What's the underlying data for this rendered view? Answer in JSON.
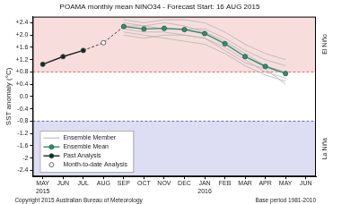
{
  "chart_data": {
    "type": "line",
    "title": "POAMA monthly mean NINO34 - Forecast Start: 16 AUG 2015",
    "y_label": "SST anomaly (°C)",
    "categories": [
      "MAY 2015",
      "JUN",
      "JUL",
      "AUG",
      "SEP",
      "OCT",
      "NOV",
      "DEC",
      "JAN 2016",
      "FEB",
      "MAR",
      "APR",
      "MAY",
      "JUN"
    ],
    "ylim": [
      -2.6,
      2.6
    ],
    "yticks": [
      -2.4,
      -2.0,
      -1.6,
      -1.2,
      -0.8,
      -0.4,
      {
        "value": 0,
        "label": "0.0"
      },
      {
        "value": 0.4,
        "label": "+0.4"
      },
      {
        "value": 0.8,
        "label": "+0.8"
      },
      {
        "value": 1.2,
        "label": "+1.2"
      },
      {
        "value": 1.6,
        "label": "+1.6"
      },
      {
        "value": 2.0,
        "label": "+2.0"
      },
      {
        "value": 2.4,
        "label": "+2.4"
      }
    ],
    "grid": false,
    "legend": "lower left",
    "thresholds": [
      {
        "value": 0.8,
        "label": "El Niño",
        "color": "#e06666",
        "line_style": "dashed"
      },
      {
        "value": -0.8,
        "label": "La Niña",
        "color": "#6666cc",
        "line_style": "dashed"
      }
    ],
    "footer": [
      "Copyright 2015 Australian Bureau of Meteorology",
      "Base period 1981-2010"
    ],
    "series": [
      {
        "name": "Ensemble Member",
        "color": "#b4b4b4",
        "marker": "none",
        "line_style": "solid",
        "values": [
          null,
          null,
          null,
          null,
          2.5,
          2.4,
          2.5,
          2.5,
          2.4,
          2.1,
          1.7,
          1.4,
          1.2,
          null
        ]
      },
      {
        "name": "Ensemble Member",
        "color": "#b4b4b4",
        "marker": "none",
        "line_style": "solid",
        "values": [
          null,
          null,
          null,
          null,
          2.1,
          2.0,
          1.9,
          1.8,
          1.7,
          1.4,
          1.0,
          0.7,
          0.5,
          null
        ]
      },
      {
        "name": "Ensemble Member",
        "color": "#b4b4b4",
        "marker": "none",
        "line_style": "solid",
        "values": [
          null,
          null,
          null,
          null,
          2.3,
          2.3,
          2.4,
          2.3,
          2.1,
          1.8,
          1.4,
          1.0,
          0.8,
          null
        ]
      },
      {
        "name": "Ensemble Member",
        "color": "#b4b4b4",
        "marker": "none",
        "line_style": "solid",
        "values": [
          null,
          null,
          null,
          null,
          2.2,
          2.1,
          2.1,
          2.0,
          1.9,
          1.6,
          1.2,
          0.8,
          0.6,
          null
        ]
      },
      {
        "name": "Ensemble Member",
        "color": "#b4b4b4",
        "marker": "none",
        "line_style": "solid",
        "values": [
          null,
          null,
          null,
          null,
          2.4,
          2.3,
          2.2,
          2.2,
          2.2,
          1.9,
          1.5,
          1.2,
          1.0,
          null
        ]
      },
      {
        "name": "Ensemble Member",
        "color": "#b4b4b4",
        "marker": "none",
        "line_style": "solid",
        "values": [
          null,
          null,
          null,
          null,
          2.0,
          1.9,
          2.0,
          2.0,
          1.9,
          1.5,
          1.1,
          0.9,
          0.4,
          null
        ]
      },
      {
        "name": "Ensemble Mean",
        "color": "#2f8f6f",
        "marker": "circle",
        "line_style": "solid",
        "values": [
          null,
          null,
          null,
          null,
          2.28,
          2.2,
          2.22,
          2.18,
          2.05,
          1.72,
          1.3,
          0.98,
          0.75,
          null
        ]
      },
      {
        "name": "Past Analysis",
        "color": "#222222",
        "marker": "circle",
        "line_style": "solid",
        "values": [
          1.05,
          1.3,
          1.5,
          null,
          null,
          null,
          null,
          null,
          null,
          null,
          null,
          null,
          null,
          null
        ]
      },
      {
        "name": "Month-to-date Analysis",
        "color": "#444444",
        "marker": "open circle",
        "line_style": "dashed",
        "values": [
          null,
          null,
          null,
          1.75,
          null,
          null,
          null,
          null,
          null,
          null,
          null,
          null,
          null,
          null
        ]
      }
    ]
  }
}
